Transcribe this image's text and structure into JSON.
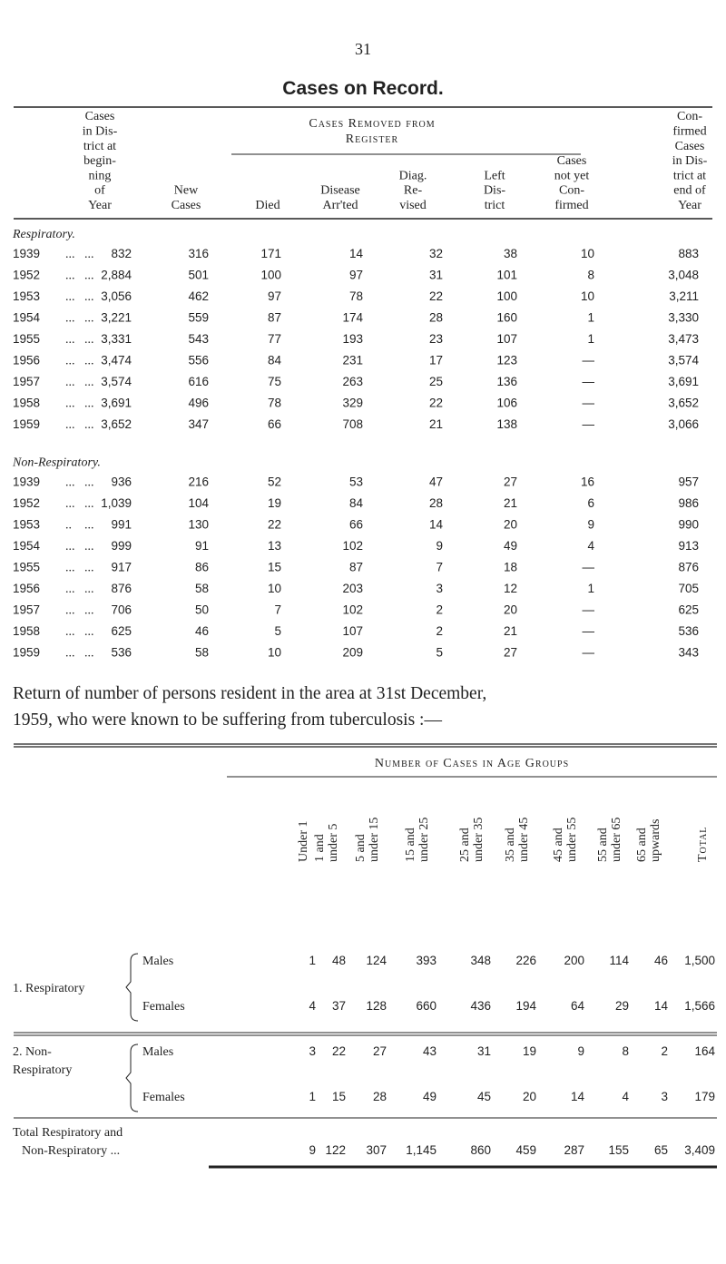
{
  "page_number": "31",
  "title": "Cases on Record.",
  "table1": {
    "header": [
      [
        "Cases",
        "in Dis-",
        "trict at",
        "begin-",
        "ning",
        "of",
        "Year"
      ],
      [
        "New",
        "Cases"
      ],
      [
        "Died"
      ],
      [
        "Disease",
        "Arr'ted"
      ],
      [
        "Diag.",
        "Re-",
        "vised"
      ],
      [
        "Left",
        "Dis-",
        "trict"
      ],
      [
        "Cases",
        "not yet",
        "Con-",
        "firmed"
      ],
      [
        "Con-",
        "firmed",
        "Cases",
        "in Dis-",
        "trict at",
        "end of",
        "Year"
      ]
    ],
    "group_header": [
      "Cases Removed from",
      "Register"
    ],
    "sections": [
      {
        "label": "Respiratory.",
        "rows": [
          {
            "year": "1939",
            "leader": "...   ...",
            "values": [
              "832",
              "316",
              "171",
              "14",
              "32",
              "38",
              "10",
              "883"
            ]
          },
          {
            "year": "1952",
            "leader": "...   ...",
            "values": [
              "2,884",
              "501",
              "100",
              "97",
              "31",
              "101",
              "8",
              "3,048"
            ]
          },
          {
            "year": "1953",
            "leader": "...   ...",
            "values": [
              "3,056",
              "462",
              "97",
              "78",
              "22",
              "100",
              "10",
              "3,211"
            ]
          },
          {
            "year": "1954",
            "leader": "...   ...",
            "values": [
              "3,221",
              "559",
              "87",
              "174",
              "28",
              "160",
              "1",
              "3,330"
            ]
          },
          {
            "year": "1955",
            "leader": "...   ...",
            "values": [
              "3,331",
              "543",
              "77",
              "193",
              "23",
              "107",
              "1",
              "3,473"
            ]
          },
          {
            "year": "1956",
            "leader": "...   ...",
            "values": [
              "3,474",
              "556",
              "84",
              "231",
              "17",
              "123",
              "—",
              "3,574"
            ]
          },
          {
            "year": "1957",
            "leader": "...   ...",
            "values": [
              "3,574",
              "616",
              "75",
              "263",
              "25",
              "136",
              "—",
              "3,691"
            ]
          },
          {
            "year": "1958",
            "leader": "...   ...",
            "values": [
              "3,691",
              "496",
              "78",
              "329",
              "22",
              "106",
              "—",
              "3,652"
            ]
          },
          {
            "year": "1959",
            "leader": "...   ...",
            "values": [
              "3,652",
              "347",
              "66",
              "708",
              "21",
              "138",
              "—",
              "3,066"
            ]
          }
        ]
      },
      {
        "label": "Non-Respiratory.",
        "rows": [
          {
            "year": "1939",
            "leader": "...   ...",
            "values": [
              "936",
              "216",
              "52",
              "53",
              "47",
              "27",
              "16",
              "957"
            ]
          },
          {
            "year": "1952",
            "leader": "...   ...",
            "values": [
              "1,039",
              "104",
              "19",
              "84",
              "28",
              "21",
              "6",
              "986"
            ]
          },
          {
            "year": "1953",
            "leader": "..    ...",
            "values": [
              "991",
              "130",
              "22",
              "66",
              "14",
              "20",
              "9",
              "990"
            ]
          },
          {
            "year": "1954",
            "leader": "...   ...",
            "values": [
              "999",
              "91",
              "13",
              "102",
              "9",
              "49",
              "4",
              "913"
            ]
          },
          {
            "year": "1955",
            "leader": "...   ...",
            "values": [
              "917",
              "86",
              "15",
              "87",
              "7",
              "18",
              "—",
              "876"
            ]
          },
          {
            "year": "1956",
            "leader": "...   ...",
            "values": [
              "876",
              "58",
              "10",
              "203",
              "3",
              "12",
              "1",
              "705"
            ]
          },
          {
            "year": "1957",
            "leader": "...   ...",
            "values": [
              "706",
              "50",
              "7",
              "102",
              "2",
              "20",
              "—",
              "625"
            ]
          },
          {
            "year": "1958",
            "leader": "...   ...",
            "values": [
              "625",
              "46",
              "5",
              "107",
              "2",
              "21",
              "—",
              "536"
            ]
          },
          {
            "year": "1959",
            "leader": "...   ...",
            "values": [
              "536",
              "58",
              "10",
              "209",
              "5",
              "27",
              "—",
              "343"
            ]
          }
        ]
      }
    ]
  },
  "paragraph": [
    "Return of number of persons resident in the area at 31st December,",
    "1959, who were known to be suffering from tuberculosis :—"
  ],
  "table2": {
    "title": "Number of Cases in Age Groups",
    "columns": [
      [
        "Under 1"
      ],
      [
        "1 and",
        "under 5"
      ],
      [
        "5 and",
        "under 15"
      ],
      [
        "15 and",
        "under 25"
      ],
      [
        "25 and",
        "under 35"
      ],
      [
        "35 and",
        "under 45"
      ],
      [
        "45 and",
        "under 55"
      ],
      [
        "55 and",
        "under 65"
      ],
      [
        "65 and",
        "upwards"
      ],
      [
        "Total"
      ]
    ],
    "groups": [
      {
        "label": [
          "1. Respiratory"
        ],
        "rows": [
          {
            "label": "Males",
            "values": [
              "1",
              "48",
              "124",
              "393",
              "348",
              "226",
              "200",
              "114",
              "46",
              "1,500"
            ]
          },
          {
            "label": "Females",
            "values": [
              "4",
              "37",
              "128",
              "660",
              "436",
              "194",
              "64",
              "29",
              "14",
              "1,566"
            ]
          }
        ]
      },
      {
        "label": [
          "2. Non-",
          "Respiratory"
        ],
        "rows": [
          {
            "label": "Males",
            "values": [
              "3",
              "22",
              "27",
              "43",
              "31",
              "19",
              "9",
              "8",
              "2",
              "164"
            ]
          },
          {
            "label": "Females",
            "values": [
              "1",
              "15",
              "28",
              "49",
              "45",
              "20",
              "14",
              "4",
              "3",
              "179"
            ]
          }
        ]
      }
    ],
    "total": {
      "label": [
        "Total Respiratory and",
        "Non-Respiratory ..."
      ],
      "values": [
        "9",
        "122",
        "307",
        "1,145",
        "860",
        "459",
        "287",
        "155",
        "65",
        "3,409"
      ]
    }
  }
}
